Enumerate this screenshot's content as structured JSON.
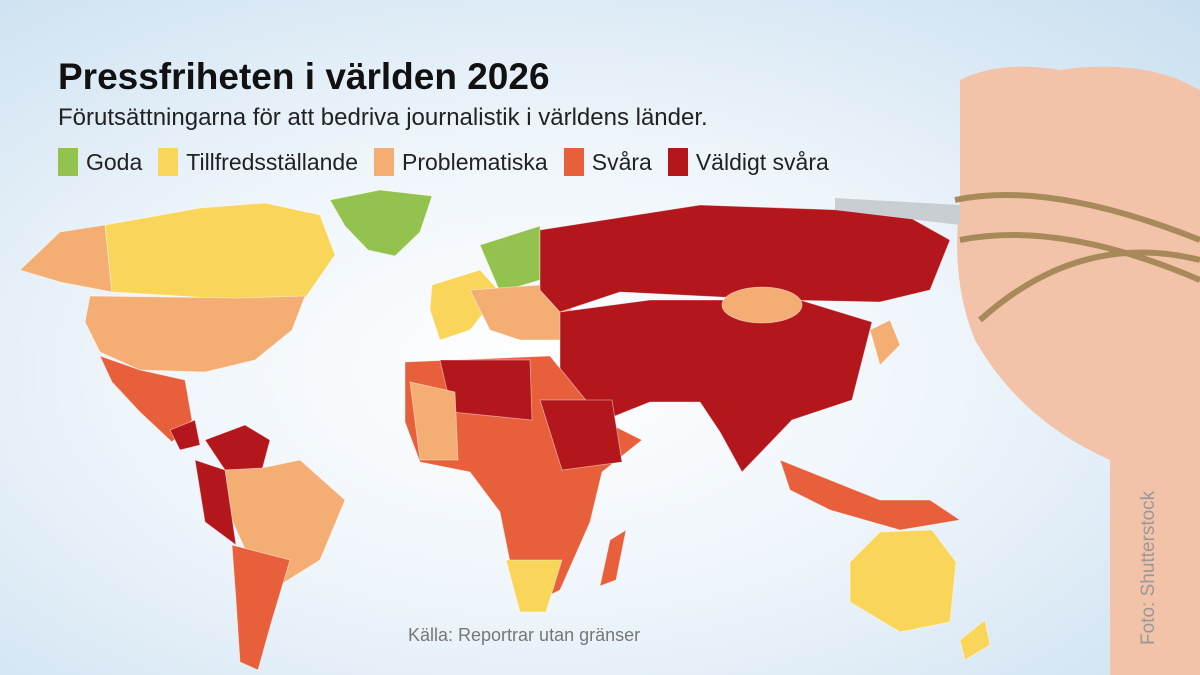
{
  "header": {
    "title": "Pressfriheten i världen 2026",
    "subtitle": "Förutsättningarna för att bedriva journalistik i världens länder."
  },
  "legend": [
    {
      "label": "Goda",
      "color": "#93c24f"
    },
    {
      "label": "Tillfredsställande",
      "color": "#f9d65a"
    },
    {
      "label": "Problematiska",
      "color": "#f4ae73"
    },
    {
      "label": "Svåra",
      "color": "#e7603b"
    },
    {
      "label": "Väldigt svåra",
      "color": "#b3161b"
    }
  ],
  "source": "Källa: Reportrar utan gränser",
  "credit": "Foto: Shutterstock"
}
